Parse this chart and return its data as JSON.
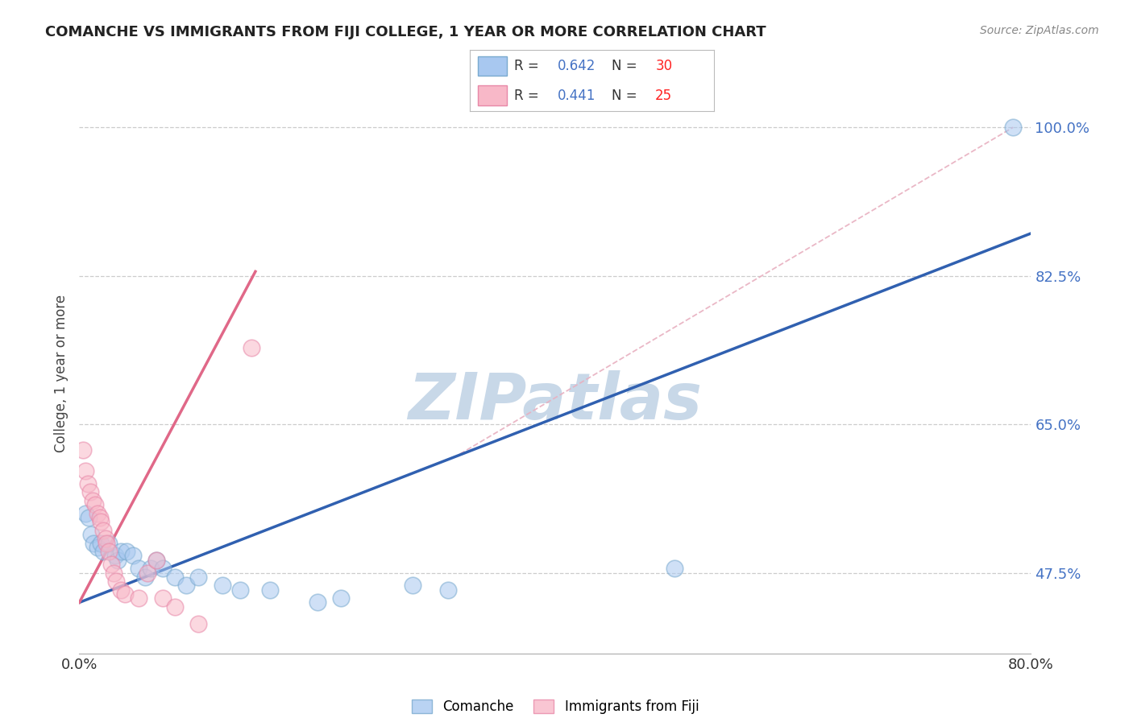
{
  "title": "COMANCHE VS IMMIGRANTS FROM FIJI COLLEGE, 1 YEAR OR MORE CORRELATION CHART",
  "source": "Source: ZipAtlas.com",
  "xlabel_comanche": "Comanche",
  "xlabel_fiji": "Immigrants from Fiji",
  "ylabel": "College, 1 year or more",
  "xlim": [
    0.0,
    0.8
  ],
  "ylim": [
    0.38,
    1.04
  ],
  "xticks": [
    0.0,
    0.1,
    0.2,
    0.3,
    0.4,
    0.5,
    0.6,
    0.7,
    0.8
  ],
  "xticklabels": [
    "0.0%",
    "",
    "",
    "",
    "",
    "",
    "",
    "",
    "80.0%"
  ],
  "ytick_positions": [
    0.475,
    0.65,
    0.825,
    1.0
  ],
  "ytick_labels": [
    "47.5%",
    "65.0%",
    "82.5%",
    "100.0%"
  ],
  "grid_color": "#cccccc",
  "background_color": "#ffffff",
  "watermark": "ZIPatlas",
  "watermark_color": "#c8d8e8",
  "r_blue": "0.642",
  "n_blue": "30",
  "r_pink": "0.441",
  "n_pink": "25",
  "label_color_blue": "#4472c4",
  "label_color_red": "#ff2222",
  "blue_marker_color": "#a8c8f0",
  "blue_marker_edge": "#7aaacf",
  "pink_marker_color": "#f8b8c8",
  "pink_marker_edge": "#e888a8",
  "line_blue": "#3060b0",
  "line_pink": "#e06888",
  "line_dashed_color": "#e8b0c0",
  "blue_scatter_x": [
    0.005,
    0.008,
    0.01,
    0.012,
    0.015,
    0.018,
    0.02,
    0.025,
    0.03,
    0.032,
    0.035,
    0.04,
    0.045,
    0.05,
    0.055,
    0.06,
    0.065,
    0.07,
    0.08,
    0.09,
    0.1,
    0.12,
    0.135,
    0.16,
    0.2,
    0.22,
    0.28,
    0.31,
    0.5,
    0.785
  ],
  "blue_scatter_y": [
    0.545,
    0.54,
    0.52,
    0.51,
    0.505,
    0.51,
    0.5,
    0.51,
    0.495,
    0.49,
    0.5,
    0.5,
    0.495,
    0.48,
    0.47,
    0.48,
    0.49,
    0.48,
    0.47,
    0.46,
    0.47,
    0.46,
    0.455,
    0.455,
    0.44,
    0.445,
    0.46,
    0.455,
    0.48,
    1.0
  ],
  "pink_scatter_x": [
    0.003,
    0.005,
    0.007,
    0.009,
    0.011,
    0.013,
    0.015,
    0.017,
    0.018,
    0.02,
    0.022,
    0.023,
    0.025,
    0.027,
    0.029,
    0.031,
    0.035,
    0.038,
    0.05,
    0.057,
    0.065,
    0.07,
    0.08,
    0.1,
    0.145
  ],
  "pink_scatter_y": [
    0.62,
    0.595,
    0.58,
    0.57,
    0.56,
    0.555,
    0.545,
    0.54,
    0.535,
    0.525,
    0.515,
    0.51,
    0.5,
    0.485,
    0.475,
    0.465,
    0.455,
    0.45,
    0.445,
    0.475,
    0.49,
    0.445,
    0.435,
    0.415,
    0.74
  ],
  "blue_line_x": [
    0.0,
    0.8
  ],
  "blue_line_y": [
    0.44,
    0.875
  ],
  "pink_line_x": [
    0.0,
    0.148
  ],
  "pink_line_y": [
    0.44,
    0.83
  ],
  "dashed_line_x": [
    0.32,
    0.785
  ],
  "dashed_line_y": [
    0.615,
    1.0
  ]
}
